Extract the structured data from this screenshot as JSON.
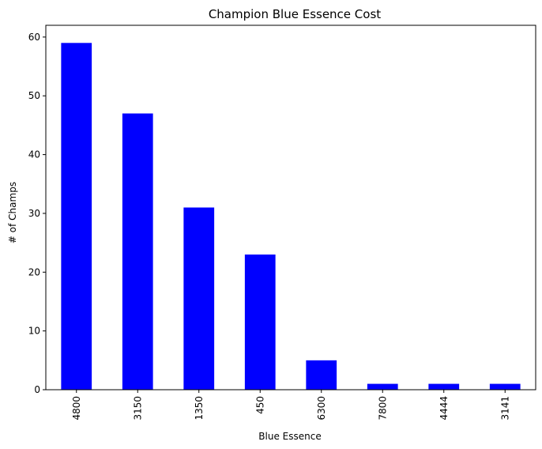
{
  "chart_data": {
    "type": "bar",
    "title": "Champion Blue Essence Cost",
    "xlabel": "Blue Essence",
    "ylabel": "# of Champs",
    "categories": [
      "4800",
      "3150",
      "1350",
      "450",
      "6300",
      "7800",
      "4444",
      "3141"
    ],
    "values": [
      59,
      47,
      31,
      23,
      5,
      1,
      1,
      1
    ],
    "ylim": [
      0,
      62
    ],
    "yticks": [
      "0",
      "10",
      "20",
      "30",
      "40",
      "50",
      "60"
    ],
    "x_tick_rotation": "vertical",
    "grid": false,
    "legend": "none",
    "bar_color": "#0000ff"
  }
}
